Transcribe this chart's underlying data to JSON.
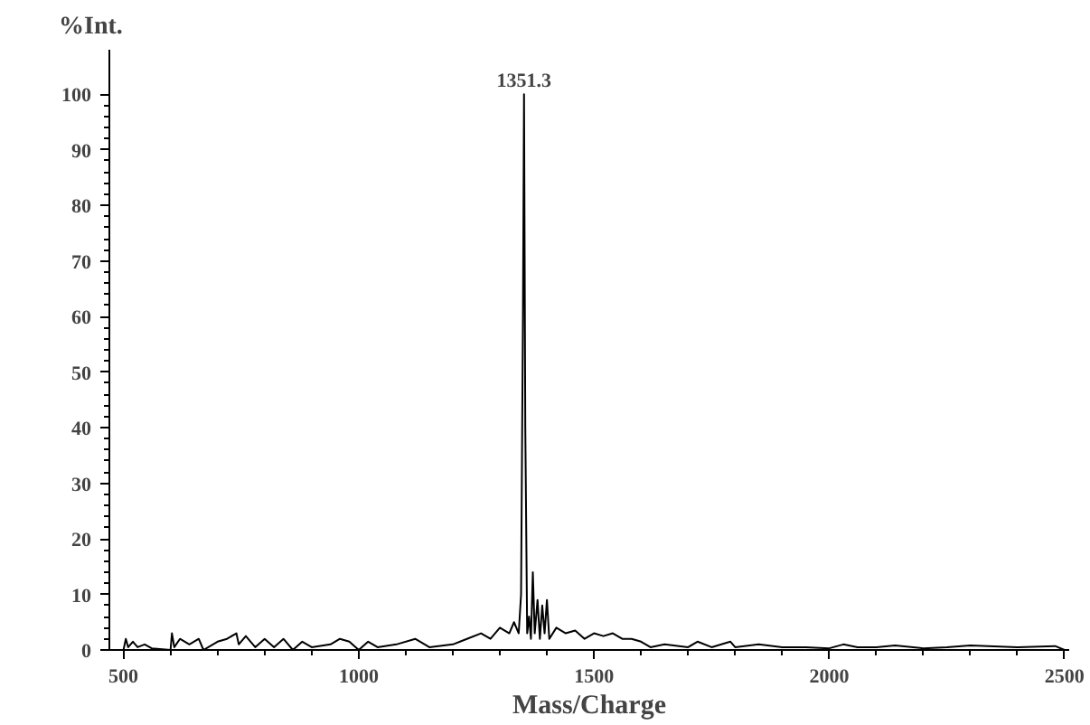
{
  "chart_data": {
    "type": "line",
    "xlabel": "Mass/Charge",
    "ylabel": "%Int.",
    "annotations": [
      {
        "text": "1351.3",
        "x": 1351.3,
        "y": 100
      }
    ],
    "x": [
      500,
      505,
      510,
      520,
      530,
      545,
      560,
      600,
      603,
      608,
      620,
      640,
      660,
      670,
      700,
      720,
      740,
      745,
      760,
      780,
      800,
      820,
      840,
      860,
      880,
      900,
      940,
      960,
      980,
      1000,
      1020,
      1040,
      1080,
      1120,
      1150,
      1200,
      1230,
      1260,
      1280,
      1300,
      1320,
      1330,
      1340,
      1345,
      1349,
      1351.3,
      1354,
      1358,
      1362,
      1366,
      1370,
      1374,
      1380,
      1385,
      1390,
      1395,
      1400,
      1405,
      1420,
      1440,
      1460,
      1480,
      1500,
      1520,
      1540,
      1560,
      1580,
      1600,
      1620,
      1650,
      1700,
      1720,
      1750,
      1790,
      1800,
      1850,
      1900,
      1950,
      2000,
      2030,
      2060,
      2100,
      2140,
      2200,
      2250,
      2300,
      2400,
      2480,
      2500
    ],
    "series": [
      {
        "color": "#000000",
        "values": [
          0,
          2,
          0.5,
          1.5,
          0.5,
          1,
          0.3,
          0,
          3,
          0.5,
          2,
          1,
          2,
          0,
          1.5,
          2,
          3,
          1,
          2.5,
          0.5,
          2,
          0.5,
          2,
          0,
          1.5,
          0.5,
          1,
          2,
          1.5,
          0,
          1.5,
          0.5,
          1,
          2,
          0.5,
          1,
          2,
          3,
          2,
          4,
          3,
          5,
          3,
          10,
          60,
          100,
          40,
          3,
          6,
          2,
          14,
          3,
          9,
          2,
          8,
          3,
          9,
          2,
          4,
          3,
          3.5,
          2,
          3,
          2.5,
          3,
          2,
          2,
          1.5,
          0.5,
          1,
          0.5,
          1.5,
          0.5,
          1.5,
          0.5,
          1,
          0.5,
          0.5,
          0.3,
          1,
          0.5,
          0.5,
          0.8,
          0.3,
          0.5,
          0.8,
          0.5,
          0.7,
          0
        ]
      }
    ],
    "xlim": [
      470,
      2510
    ],
    "ylim": [
      0,
      108
    ],
    "xticks": [
      500,
      1000,
      1500,
      2000,
      2500
    ],
    "yticks": [
      0,
      10,
      20,
      30,
      40,
      50,
      60,
      70,
      80,
      90,
      100
    ],
    "grid": false,
    "marker": "none",
    "line_style": "solid"
  }
}
